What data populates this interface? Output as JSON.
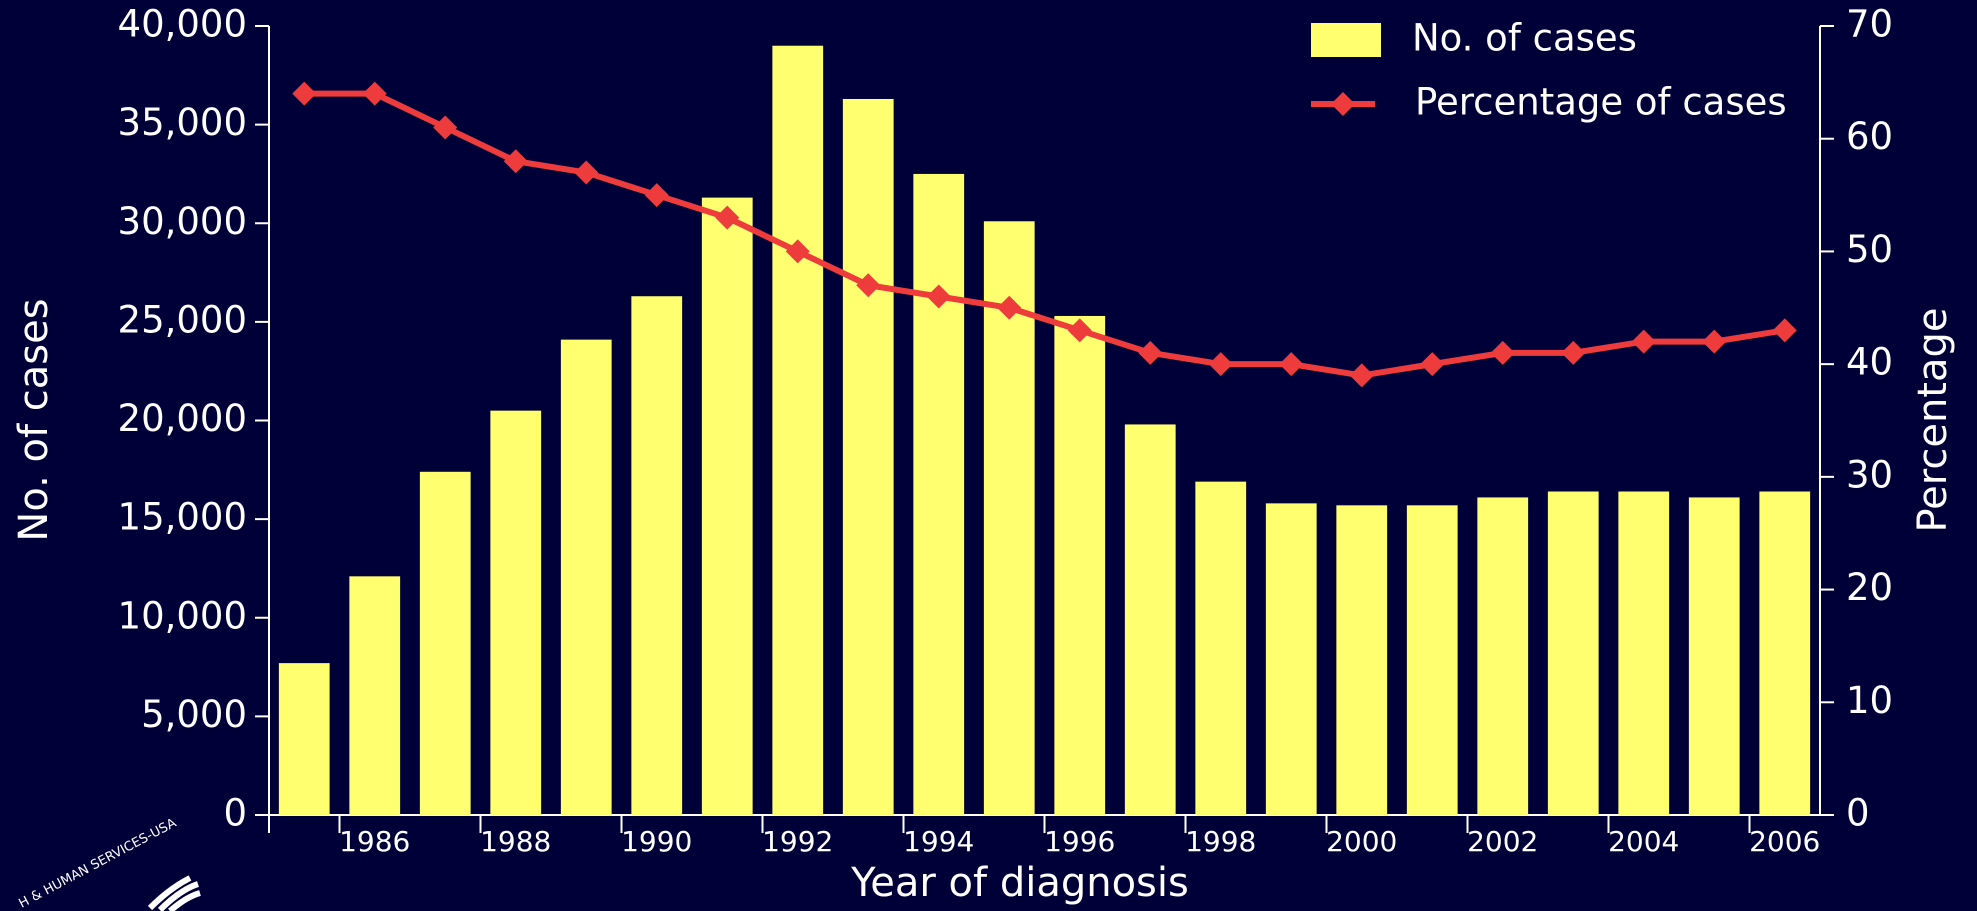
{
  "chart_data": {
    "type": "bar",
    "x_label": "Year of diagnosis",
    "y_label": "No. of cases",
    "y2_label": "Percentage",
    "logo_text": "H & HUMAN SERVICES-USA",
    "categories": [
      null,
      "1986",
      null,
      "1988",
      null,
      "1990",
      null,
      "1992",
      null,
      "1994",
      null,
      "1996",
      null,
      "1998",
      null,
      "2000",
      null,
      "2002",
      null,
      "2004",
      null,
      "2006"
    ],
    "series": [
      {
        "name": "No. of cases",
        "type": "bar",
        "color": "#ffff70",
        "values": [
          7700,
          12100,
          17400,
          20500,
          24100,
          26300,
          31300,
          39000,
          36300,
          32500,
          30100,
          25300,
          19800,
          16900,
          15800,
          15700,
          15700,
          16100,
          16400,
          16400,
          16100,
          16400
        ]
      },
      {
        "name": "Percentage of cases",
        "type": "line",
        "axis": "y2",
        "color": "#ee3b3b",
        "values": [
          64,
          64,
          61,
          58,
          57,
          55,
          53,
          50,
          47,
          46,
          45,
          43,
          41,
          40,
          40,
          39,
          40,
          41,
          41,
          42,
          42,
          43
        ]
      }
    ],
    "ylim": [
      0,
      40000
    ],
    "yticks": [
      {
        "value": 0,
        "label": "0"
      },
      {
        "value": 5000,
        "label": "5,000"
      },
      {
        "value": 10000,
        "label": "10,000"
      },
      {
        "value": 15000,
        "label": "15,000"
      },
      {
        "value": 20000,
        "label": "20,000"
      },
      {
        "value": 25000,
        "label": "25,000"
      },
      {
        "value": 30000,
        "label": "30,000"
      },
      {
        "value": 35000,
        "label": "35,000"
      },
      {
        "value": 40000,
        "label": "40,000"
      }
    ],
    "y2lim": [
      0,
      70
    ],
    "y2ticks": [
      0,
      10,
      20,
      30,
      40,
      50,
      60,
      70
    ],
    "legend": "top-right"
  }
}
